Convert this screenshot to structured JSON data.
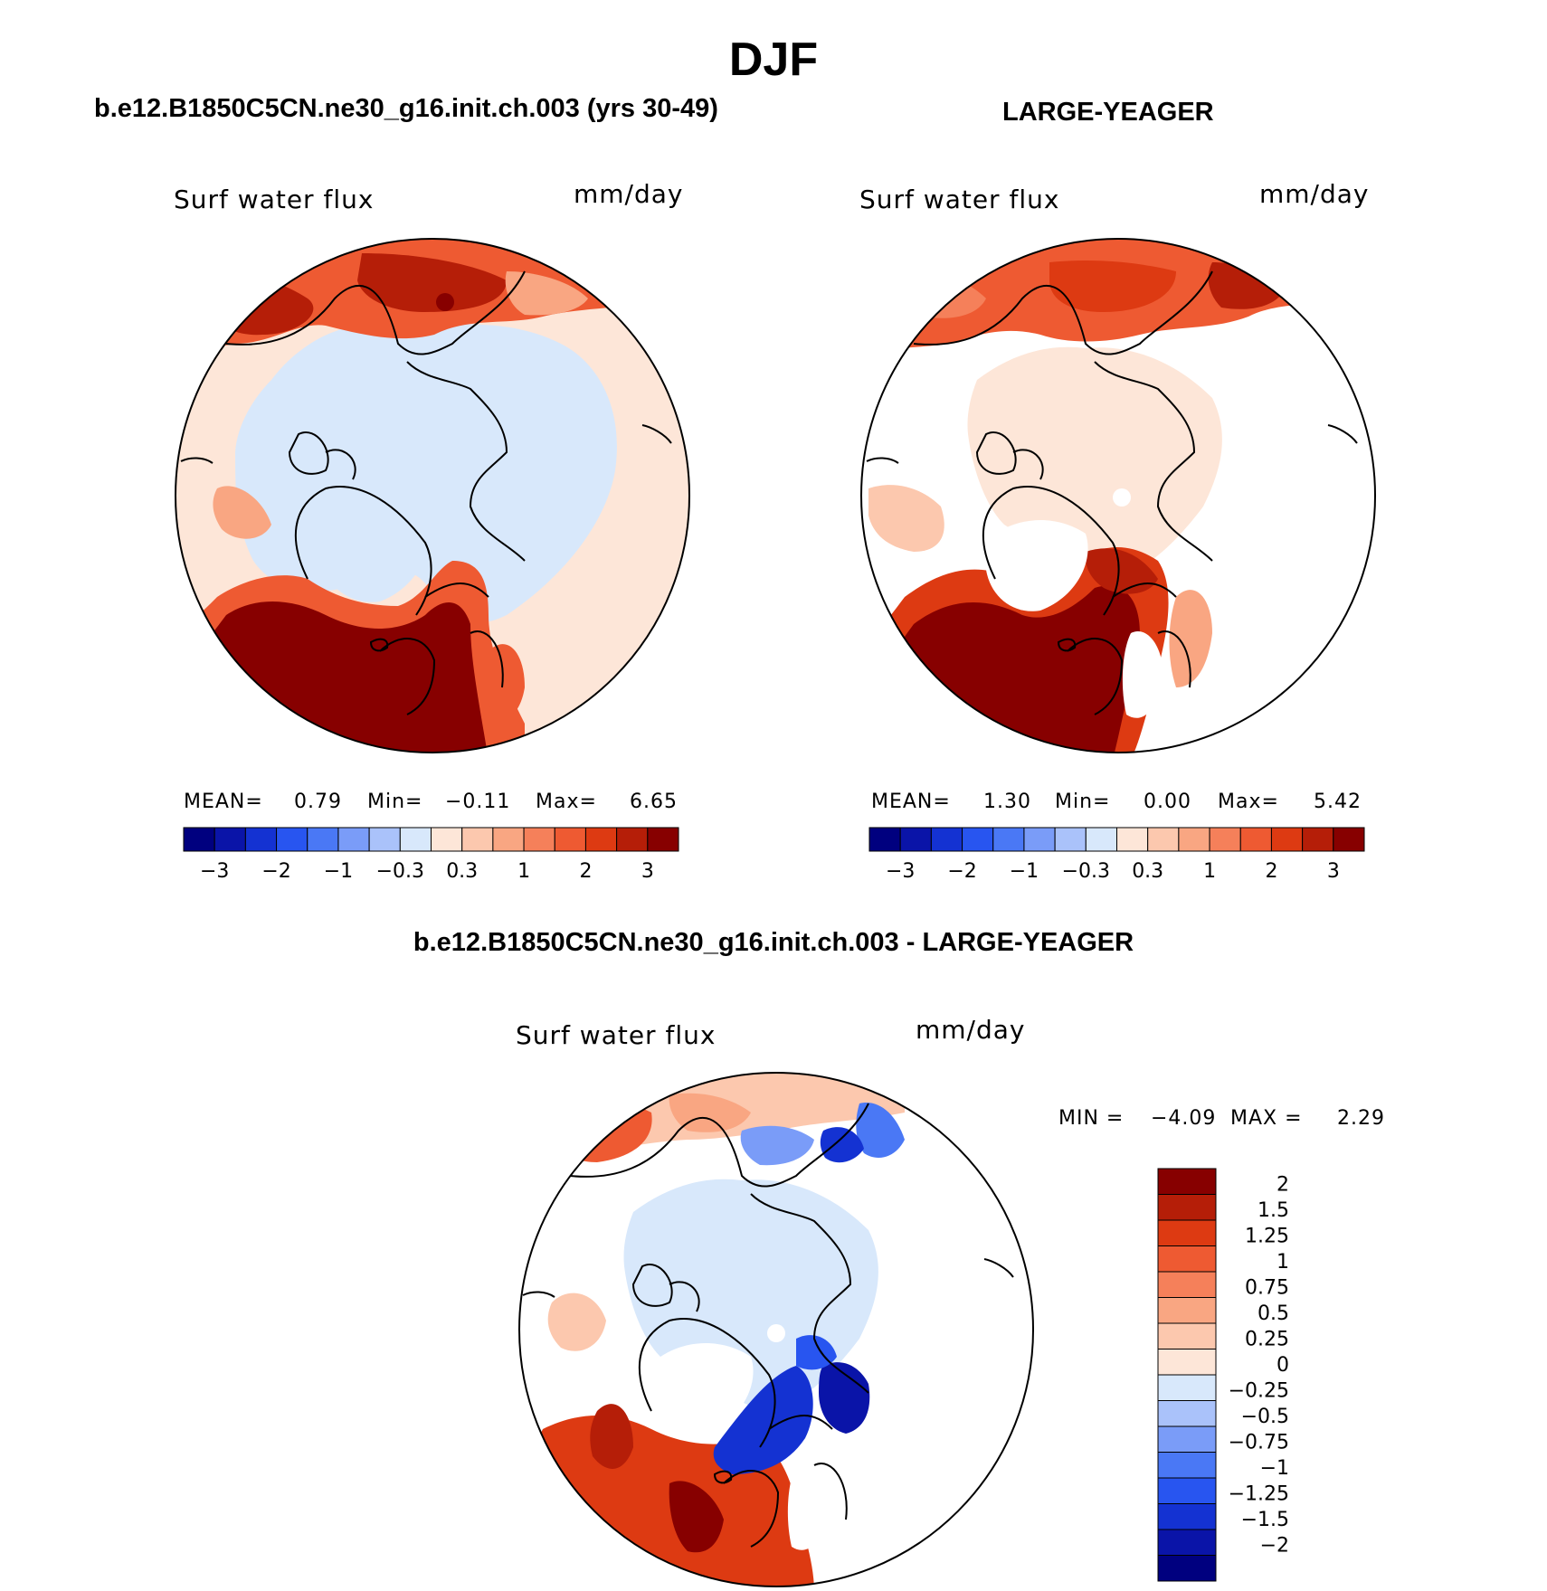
{
  "title": "DJF",
  "panels": {
    "left": {
      "case": "b.e12.B1850C5CN.ne30_g16.init.ch.003 (yrs 30-49)",
      "variable": "Surf water flux",
      "units": "mm/day",
      "stats": {
        "mean_label": "MEAN=",
        "mean": "0.79",
        "min_label": "Min=",
        "min": "−0.11",
        "max_label": "Max=",
        "max": "6.65"
      }
    },
    "right": {
      "case": "LARGE-YEAGER",
      "variable": "Surf water flux",
      "units": "mm/day",
      "stats": {
        "mean_label": "MEAN=",
        "mean": "1.30",
        "min_label": "Min=",
        "min": "0.00",
        "max_label": "Max=",
        "max": "5.42"
      }
    },
    "diff": {
      "case": "b.e12.B1850C5CN.ne30_g16.init.ch.003 - LARGE-YEAGER",
      "variable": "Surf water flux",
      "units": "mm/day",
      "stats": {
        "min_label": "MIN =",
        "min": "−4.09",
        "max_label": "MAX =",
        "max": "2.29"
      }
    }
  },
  "colorbars": {
    "field": {
      "colors": [
        "#00007f",
        "#0a14a8",
        "#1432d2",
        "#2855f0",
        "#4a78f5",
        "#7a9cf8",
        "#aac2fa",
        "#d8e8fb",
        "#fde6d8",
        "#fcc8ae",
        "#f9a682",
        "#f5805a",
        "#ee5a32",
        "#dd3a12",
        "#b51e08",
        "#870000"
      ],
      "tick_labels": [
        "−3",
        "−2",
        "−1",
        "−0.3",
        "0.3",
        "1",
        "2",
        "3"
      ]
    },
    "diff": {
      "colors": [
        "#870000",
        "#b51e08",
        "#dd3a12",
        "#ee5a32",
        "#f5805a",
        "#f9a682",
        "#fcc8ae",
        "#fde6d8",
        "#d8e8fb",
        "#aac2fa",
        "#7a9cf8",
        "#4a78f5",
        "#2855f0",
        "#1432d2",
        "#0a14a8",
        "#00007f"
      ],
      "tick_labels": [
        "2",
        "1.5",
        "1.25",
        "1",
        "0.75",
        "0.5",
        "0.25",
        "0",
        "−0.25",
        "−0.5",
        "−0.75",
        "−1",
        "−1.25",
        "−1.5",
        "−2"
      ]
    }
  },
  "map_colors": {
    "ocean": "#ffffff",
    "coast": "#000000",
    "pale_blue": "#d8e8fb",
    "pale_orange": "#fde6d8",
    "light_orange": "#fcc8ae",
    "salmon": "#f9a682",
    "orange": "#f5805a",
    "red_orange": "#ee5a32",
    "red": "#dd3a12",
    "dark_red": "#b51e08",
    "maroon": "#870000",
    "blue": "#4a78f5",
    "dark_blue": "#0a14a8"
  }
}
